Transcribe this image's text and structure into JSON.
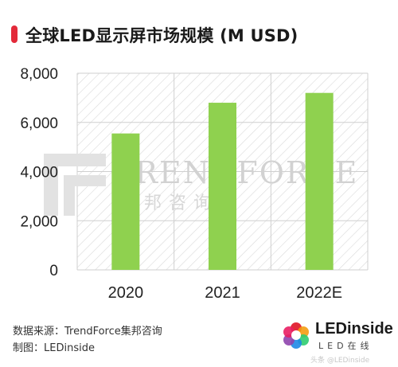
{
  "title": "全球LED显示屏市场规模 (M USD)",
  "colors": {
    "accent": "#e32a3a",
    "bar": "#8fd14f",
    "hatch": "#d9d9d9"
  },
  "watermark": {
    "brand": "TRENDFORCE",
    "sub": "集邦咨询"
  },
  "chart_data": {
    "type": "bar",
    "title": "全球LED显示屏市场规模 (M USD)",
    "categories": [
      "2020",
      "2021",
      "2022E"
    ],
    "values": [
      5550,
      6800,
      7200
    ],
    "yticks": [
      "0",
      "2,000",
      "4,000",
      "6,000",
      "8,000"
    ],
    "ylim": [
      0,
      8000
    ],
    "xlabel": "",
    "ylabel": "",
    "grid": true
  },
  "footer": {
    "source": "数据来源：TrendForce集邦咨询",
    "author": "制图：LEDinside"
  },
  "logo": {
    "name": "LEDinside",
    "tagline": "LED在线",
    "icon": "ledinside-logo-icon"
  },
  "corner_watermark": "头条 @LEDinside"
}
